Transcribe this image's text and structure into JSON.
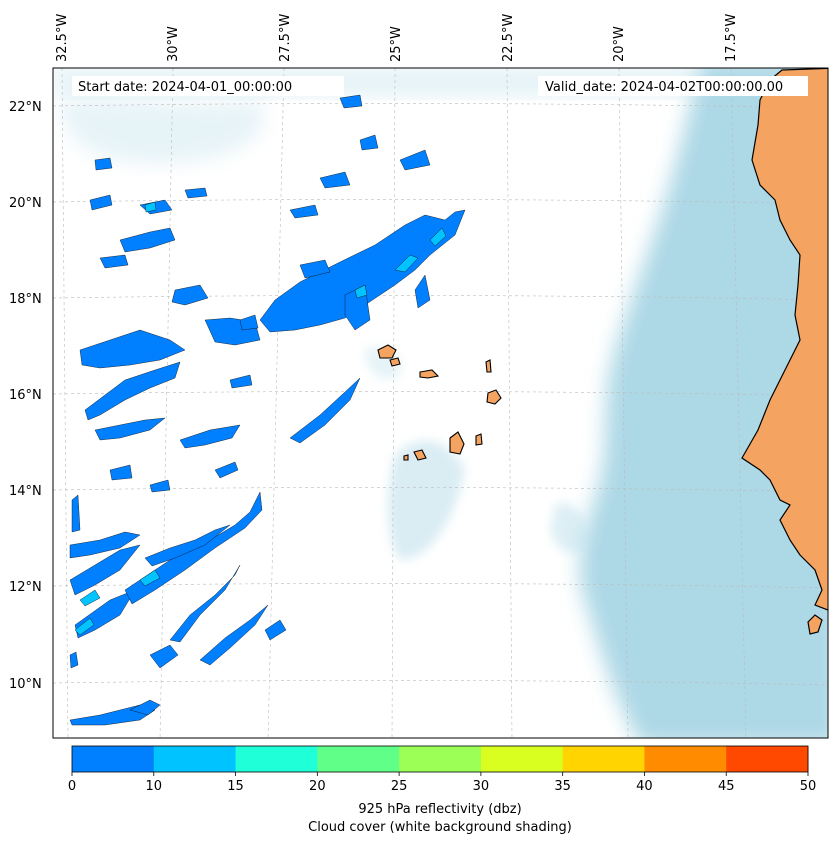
{
  "header": {
    "start_date": "Start date: 2024-04-01_00:00:00",
    "valid_date": "Valid_date: 2024-04-02T00:00:00.00"
  },
  "map": {
    "lon_labels": [
      "32.5°W",
      "30°W",
      "27.5°W",
      "25°W",
      "22.5°W",
      "20°W",
      "17.5°W"
    ],
    "lat_labels": [
      "22°N",
      "20°N",
      "18°N",
      "16°N",
      "14°N",
      "12°N",
      "10°N"
    ],
    "colors": {
      "land": "#f4a460",
      "cloud": "#add8e6",
      "ocean": "#ffffff",
      "reflectivity_low": "#0080ff",
      "reflectivity_mid": "#00c3ff"
    }
  },
  "colorbar": {
    "ticks": [
      "0",
      "10",
      "15",
      "20",
      "25",
      "30",
      "35",
      "40",
      "45",
      "50"
    ],
    "colors": [
      "#0080ff",
      "#00c3ff",
      "#1fffd8",
      "#5fff88",
      "#9bff55",
      "#d8ff1f",
      "#ffd400",
      "#ff8c00",
      "#ff4800"
    ],
    "label_line1": "925 hPa reflectivity (dbz)",
    "label_line2": "Cloud cover (white background shading)"
  }
}
